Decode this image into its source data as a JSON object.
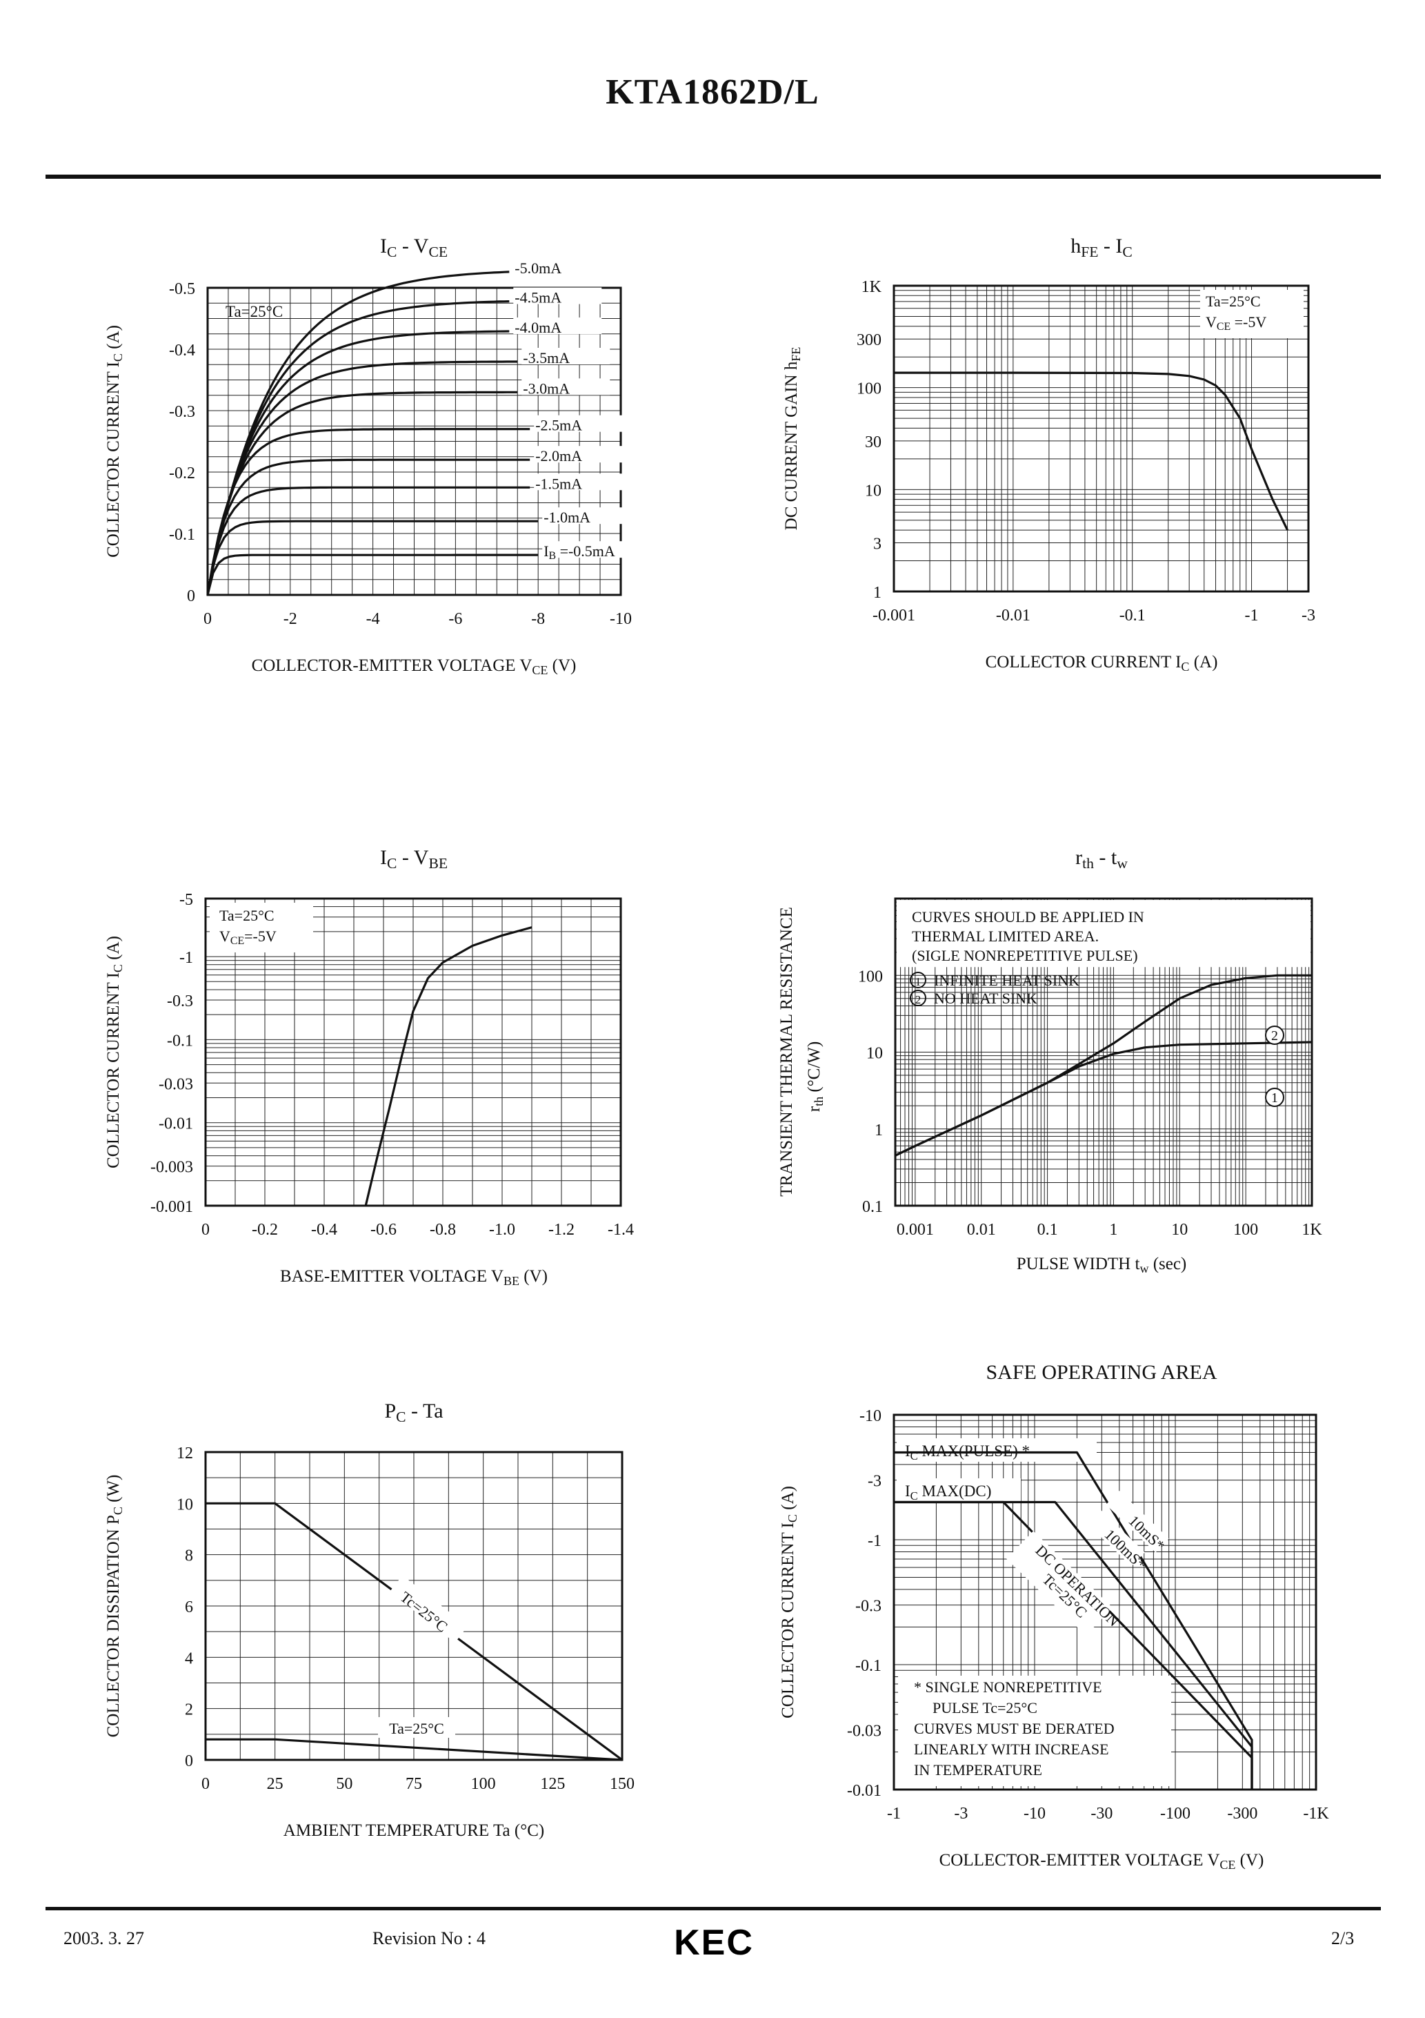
{
  "document": {
    "title": "KTA1862D/L",
    "footer": {
      "date": "2003. 3. 27",
      "revision": "Revision No : 4",
      "logo": "KEC",
      "page": "2/3"
    }
  },
  "chart_data": [
    {
      "id": "ic_vce",
      "type": "line",
      "title": "IC - VCE",
      "title_main": "I",
      "title_sub": "C",
      "title_mid": "-",
      "title_main2": "V",
      "title_sub2": "CE",
      "ylabel": "COLLECTOR CURRENT I",
      "ylabel_sub": "C",
      "ylabel_unit": "(A)",
      "xlabel": "COLLECTOR-EMITTER VOLTAGE V",
      "xlabel_sub": "CE",
      "xlabel_unit": "(V)",
      "xlim": [
        0,
        -10
      ],
      "ylim": [
        0,
        -0.5
      ],
      "xticks": [
        0,
        -2,
        -4,
        -6,
        -8,
        -10
      ],
      "xtick_labels": [
        "0",
        "-2",
        "-4",
        "-6",
        "-8",
        "-10"
      ],
      "yticks": [
        0,
        -0.1,
        -0.2,
        -0.3,
        -0.4,
        -0.5
      ],
      "ytick_labels": [
        "0",
        "-0.1",
        "-0.2",
        "-0.3",
        "-0.4",
        "-0.5"
      ],
      "annotation": "Ta=25°C",
      "series": [
        {
          "name": "IB =-0.5mA",
          "label_main": "I",
          "label_sub": "B",
          "label_rest": " =-0.5mA",
          "isat": -0.065,
          "vk": 0.5,
          "xend": -8.0
        },
        {
          "name": "-1.0mA",
          "isat": -0.12,
          "vk": 0.8,
          "xend": -8.0
        },
        {
          "name": "-1.5mA",
          "isat": -0.175,
          "vk": 1.2,
          "xend": -7.8
        },
        {
          "name": "-2.0mA",
          "isat": -0.22,
          "vk": 1.5,
          "xend": -7.8
        },
        {
          "name": "-2.5mA",
          "isat": -0.27,
          "vk": 1.8,
          "xend": -7.8
        },
        {
          "name": "-3.0mA",
          "isat": -0.33,
          "vk": 2.5,
          "xend": -7.5
        },
        {
          "name": "-3.5mA",
          "isat": -0.38,
          "vk": 3.0,
          "xend": -7.5
        },
        {
          "name": "-4.0mA",
          "isat": -0.43,
          "vk": 3.5,
          "xend": -7.3
        },
        {
          "name": "-4.5mA",
          "isat": -0.48,
          "vk": 4.0,
          "xend": -7.3
        },
        {
          "name": "-5.0mA",
          "isat": -0.53,
          "vk": 4.5,
          "xend": -7.3
        }
      ]
    },
    {
      "id": "hfe_ic",
      "type": "line",
      "title": "hFE - IC",
      "title_main": "h",
      "title_sub": "FE",
      "title_mid": "-",
      "title_main2": "I",
      "title_sub2": "C",
      "ylabel": "DC CURRENT GAIN h",
      "ylabel_sub": "FE",
      "ylabel_unit": "",
      "xlabel": "COLLECTOR CURRENT I",
      "xlabel_sub": "C",
      "xlabel_unit": "(A)",
      "xscale": "log",
      "yscale": "log",
      "xlim": [
        0.001,
        3
      ],
      "ylim": [
        1,
        1000
      ],
      "xticks": [
        0.001,
        0.01,
        0.1,
        1,
        3
      ],
      "xtick_labels": [
        "-0.001",
        "-0.01",
        "-0.1",
        "-1",
        "-3"
      ],
      "yticks": [
        1,
        3,
        10,
        30,
        100,
        300,
        1000
      ],
      "ytick_labels": [
        "1",
        "3",
        "10",
        "30",
        "100",
        "300",
        "1K"
      ],
      "annotations": [
        "Ta=25°C",
        "VCE =-5V"
      ],
      "ann2_main": "V",
      "ann2_sub": "CE",
      "ann2_rest": " =-5V",
      "series": [
        {
          "name": "hFE",
          "x": [
            0.001,
            0.01,
            0.1,
            0.2,
            0.3,
            0.4,
            0.5,
            0.6,
            0.8,
            1.0,
            1.5,
            2.0
          ],
          "y": [
            140,
            140,
            139,
            136,
            130,
            120,
            105,
            85,
            50,
            25,
            8,
            4
          ]
        }
      ]
    },
    {
      "id": "ic_vbe",
      "type": "line",
      "title": "IC - VBE",
      "title_main": "I",
      "title_sub": "C",
      "title_mid": "-",
      "title_main2": "V",
      "title_sub2": "BE",
      "ylabel": "COLLECTOR CURRENT I",
      "ylabel_sub": "C",
      "ylabel_unit": "(A)",
      "xlabel": "BASE-EMITTER VOLTAGE V",
      "xlabel_sub": "BE",
      "xlabel_unit": "(V)",
      "yscale": "log",
      "xlim": [
        0,
        -1.4
      ],
      "ylim": [
        0.001,
        5
      ],
      "xticks": [
        0,
        -0.2,
        -0.4,
        -0.6,
        -0.8,
        -1.0,
        -1.2,
        -1.4
      ],
      "xtick_labels": [
        "0",
        "-0.2",
        "-0.4",
        "-0.6",
        "-0.8",
        "-1.0",
        "-1.2",
        "-1.4"
      ],
      "yticks": [
        0.001,
        0.003,
        0.01,
        0.03,
        0.1,
        0.3,
        1,
        5
      ],
      "ytick_labels": [
        "-0.001",
        "-0.003",
        "-0.01",
        "-0.03",
        "-0.1",
        "-0.3",
        "-1",
        "-5"
      ],
      "annotations": [
        "Ta=25°C",
        "VCE=-5V"
      ],
      "ann2_main": "V",
      "ann2_sub": "CE",
      "ann2_rest": "=-5V",
      "series": [
        {
          "name": "IC",
          "x": [
            -0.54,
            -0.58,
            -0.62,
            -0.66,
            -0.7,
            -0.75,
            -0.8,
            -0.9,
            -1.0,
            -1.1
          ],
          "y": [
            0.001,
            0.004,
            0.015,
            0.06,
            0.22,
            0.55,
            0.85,
            1.35,
            1.8,
            2.25
          ]
        }
      ]
    },
    {
      "id": "rth_tw",
      "type": "line",
      "title": "rth - tw",
      "title_main": "r",
      "title_sub": "th",
      "title_mid": "-",
      "title_main2": "t",
      "title_sub2": "w",
      "ylabel": "TRANSIENT THERMAL RESISTANCE",
      "ylabel2_main": "r",
      "ylabel2_sub": "th",
      "ylabel2_rest": "(°C/W)",
      "xlabel": "PULSE WIDTH t",
      "xlabel_sub": "w",
      "xlabel_unit": "(sec)",
      "xscale": "log",
      "yscale": "log",
      "xlim": [
        0.0005,
        1000
      ],
      "ylim": [
        0.1,
        1000
      ],
      "xticks": [
        0.001,
        0.01,
        0.1,
        1,
        10,
        100,
        1000
      ],
      "xtick_labels": [
        "0.001",
        "0.01",
        "0.1",
        "1",
        "10",
        "100",
        "1K"
      ],
      "yticks": [
        0.1,
        1,
        10,
        100
      ],
      "ytick_labels": [
        "0.1",
        "1",
        "10",
        "100"
      ],
      "notes": [
        "CURVES SHOULD BE APPLIED IN",
        "THERMAL LIMITED AREA.",
        "(SIGLE NONREPETITIVE PULSE)"
      ],
      "legend": [
        {
          "mark": "1",
          "text": "INFINITE HEAT SINK"
        },
        {
          "mark": "2",
          "text": "NO HEAT SINK"
        }
      ],
      "series": [
        {
          "name": "1",
          "x": [
            0.0005,
            0.001,
            0.01,
            0.1,
            0.3,
            1,
            3,
            10,
            100,
            1000
          ],
          "y": [
            0.45,
            0.6,
            1.5,
            4,
            6.5,
            9.5,
            11.5,
            12.5,
            13,
            13.5
          ]
        },
        {
          "name": "2",
          "x": [
            0.0005,
            0.001,
            0.01,
            0.1,
            0.3,
            1,
            3,
            10,
            30,
            100,
            300,
            1000
          ],
          "y": [
            0.45,
            0.6,
            1.5,
            4,
            7,
            13,
            25,
            50,
            75,
            92,
            100,
            100
          ]
        }
      ]
    },
    {
      "id": "pc_ta",
      "type": "line",
      "title": "PC - Ta",
      "title_main": "P",
      "title_sub": "C",
      "title_mid": "-",
      "title_main2": "Ta",
      "title_sub2": "",
      "ylabel": "COLLECTOR DISSIPATION P",
      "ylabel_sub": "C",
      "ylabel_unit": "(W)",
      "xlabel": "AMBIENT TEMPERATURE Ta",
      "xlabel_sub": "",
      "xlabel_unit": "(°C)",
      "xlim": [
        0,
        150
      ],
      "ylim": [
        0,
        12
      ],
      "xticks": [
        0,
        25,
        50,
        75,
        100,
        125,
        150
      ],
      "xtick_labels": [
        "0",
        "25",
        "50",
        "75",
        "100",
        "125",
        "150"
      ],
      "yticks": [
        0,
        2,
        4,
        6,
        8,
        10,
        12
      ],
      "ytick_labels": [
        "0",
        "2",
        "4",
        "6",
        "8",
        "10",
        "12"
      ],
      "series": [
        {
          "name": "Tc=25°C",
          "x": [
            0,
            25,
            150
          ],
          "y": [
            10,
            10,
            0
          ]
        },
        {
          "name": "Ta=25°C",
          "x": [
            0,
            25,
            150
          ],
          "y": [
            0.8,
            0.8,
            0
          ]
        }
      ]
    },
    {
      "id": "soa",
      "type": "line",
      "title": "SAFE OPERATING AREA",
      "ylabel": "COLLECTOR CURRENT I",
      "ylabel_sub": "C",
      "ylabel_unit": "(A)",
      "xlabel": "COLLECTOR-EMITTER VOLTAGE V",
      "xlabel_sub": "CE",
      "xlabel_unit": "(V)",
      "xscale": "log",
      "yscale": "log",
      "xlim": [
        1,
        1000
      ],
      "ylim": [
        0.01,
        10
      ],
      "xticks": [
        1,
        3,
        10,
        30,
        100,
        300,
        1000
      ],
      "xtick_labels": [
        "-1",
        "-3",
        "-10",
        "-30",
        "-100",
        "-300",
        "-1K"
      ],
      "yticks": [
        0.01,
        0.03,
        0.1,
        0.3,
        1,
        3,
        10
      ],
      "ytick_labels": [
        "-0.01",
        "-0.03",
        "-0.1",
        "-0.3",
        "-1",
        "-3",
        "-10"
      ],
      "limit_labels": [
        {
          "main": "I",
          "sub": "C",
          "rest": " MAX(PULSE) *"
        },
        {
          "main": "I",
          "sub": "C",
          "rest": " MAX(DC)"
        }
      ],
      "notes": [
        "*  SINGLE NONREPETITIVE",
        "PULSE Tc=25°C",
        "CURVES MUST BE DERATED",
        "LINEARLY WITH INCREASE",
        "IN TEMPERATURE"
      ],
      "series": [
        {
          "name": "10mS*",
          "x": [
            1,
            20,
            350,
            350
          ],
          "y": [
            5,
            5,
            0.025,
            0.01
          ]
        },
        {
          "name": "100mS*",
          "x": [
            1,
            14,
            350,
            350
          ],
          "y": [
            2,
            2,
            0.022,
            0.01
          ]
        },
        {
          "name": "DC OPERATION Tc=25°C",
          "x": [
            1,
            6,
            350,
            350
          ],
          "y": [
            2,
            2,
            0.018,
            0.01
          ]
        }
      ]
    }
  ]
}
